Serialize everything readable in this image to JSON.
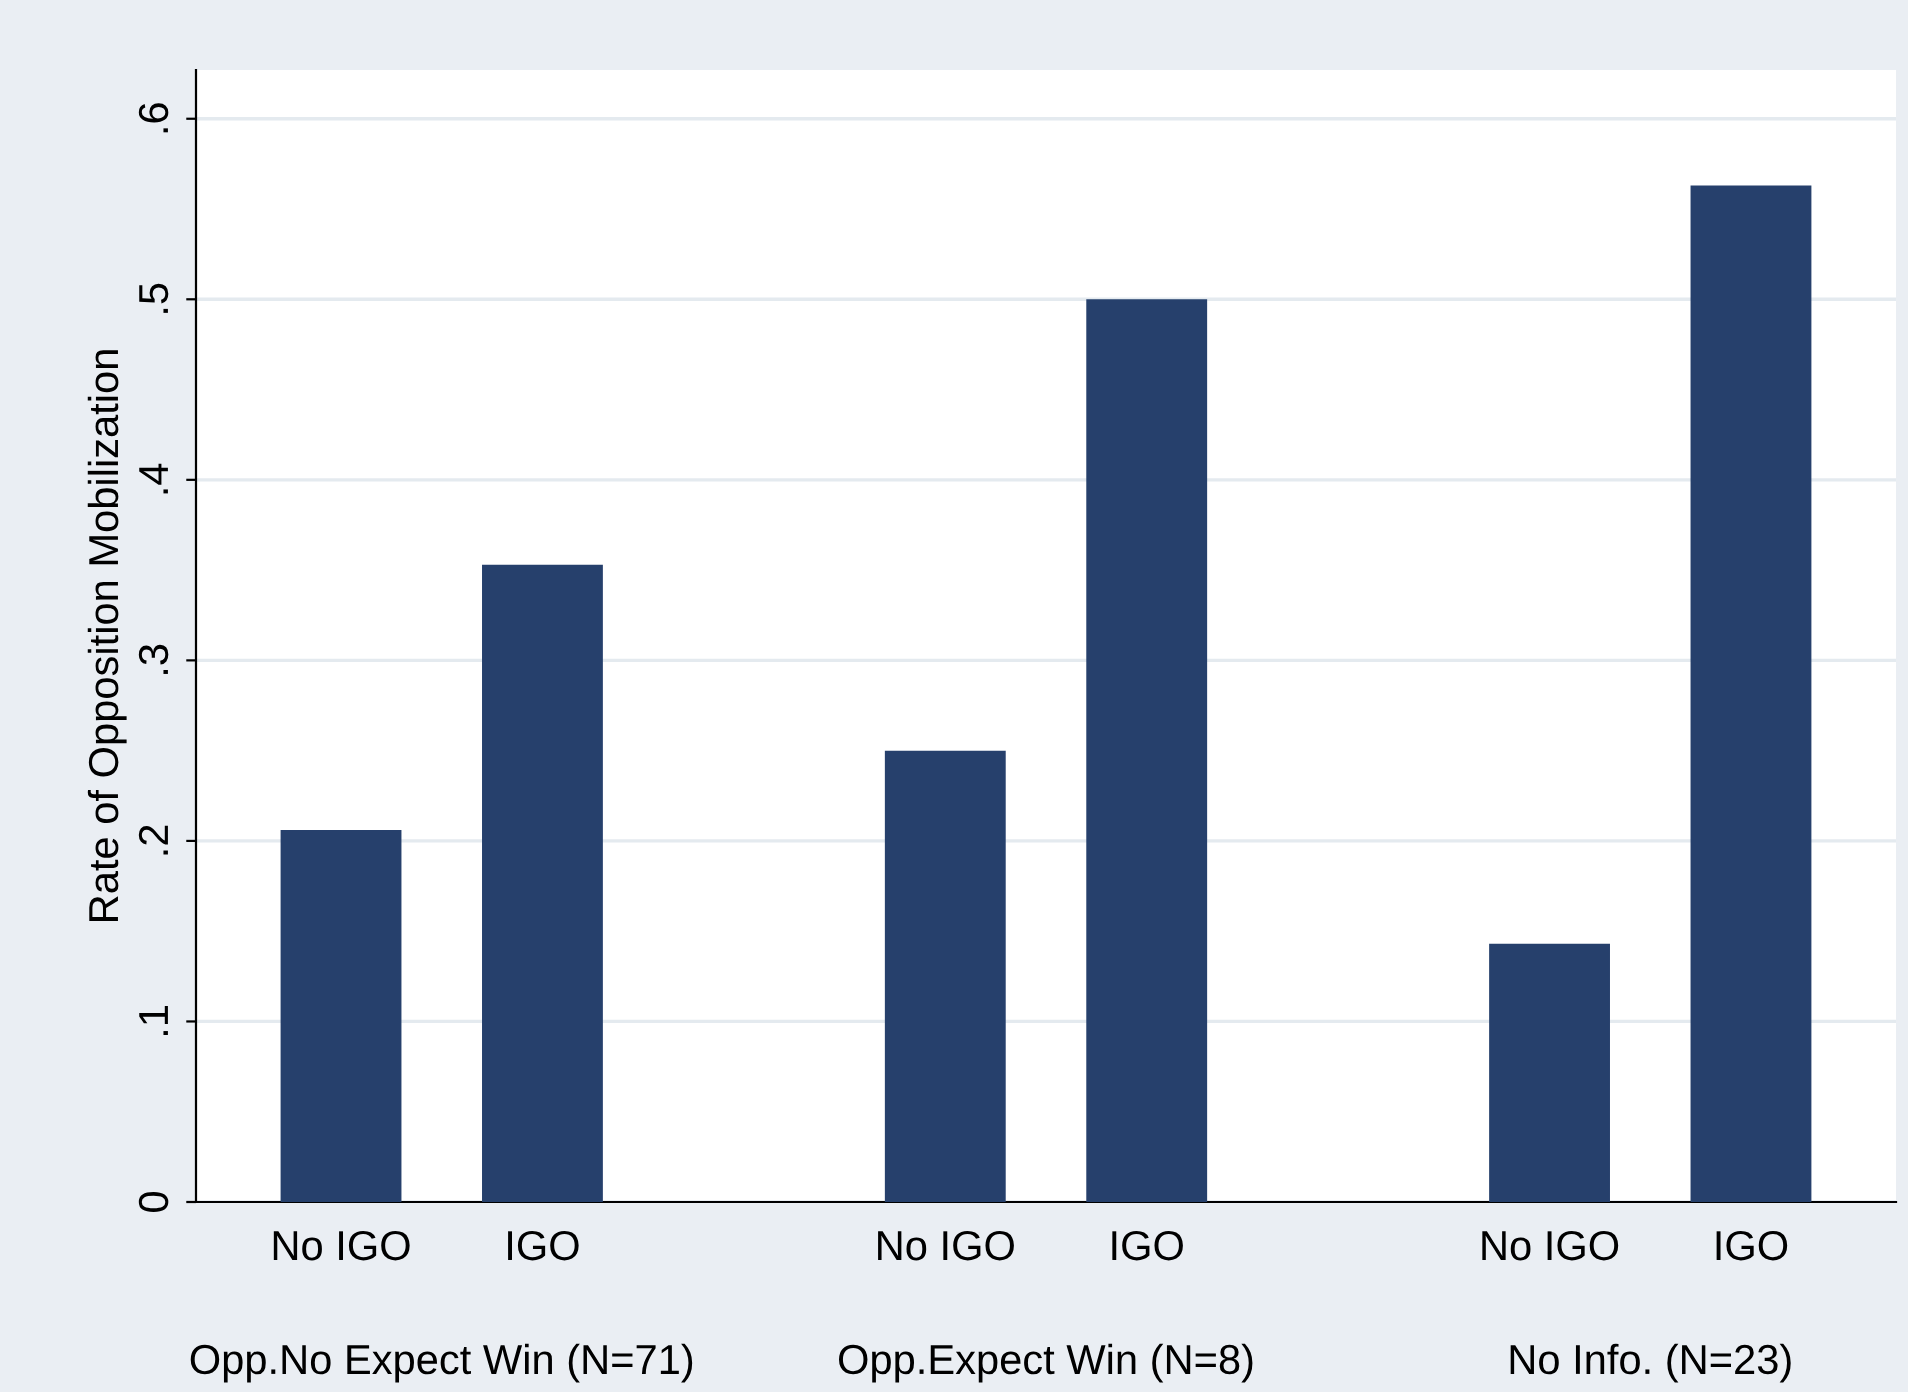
{
  "chart_data": {
    "type": "bar",
    "ylabel": "Rate of Opposition Mobilization",
    "categories": [
      "No IGO",
      "IGO",
      null,
      "No IGO",
      "IGO",
      null,
      "No IGO",
      "IGO"
    ],
    "values": [
      0.206,
      0.353,
      null,
      0.25,
      0.5,
      null,
      0.143,
      0.563
    ],
    "color": "#26406c",
    "ylim": [
      0,
      0.627
    ],
    "yticks": [
      0,
      {
        "value": 0.1,
        "label": ".1"
      },
      {
        "value": 0.2,
        "label": ".2"
      },
      {
        "value": 0.3,
        "label": ".3"
      },
      {
        "value": 0.4,
        "label": ".4"
      },
      {
        "value": 0.5,
        "label": ".5"
      },
      {
        "value": 0.6,
        "label": ".6"
      }
    ],
    "grid": "y",
    "annotations": [
      "Opp.No Expect Win (N=71)",
      "Opp.Expect Win (N=8)",
      "No Info. (N=23)"
    ]
  }
}
